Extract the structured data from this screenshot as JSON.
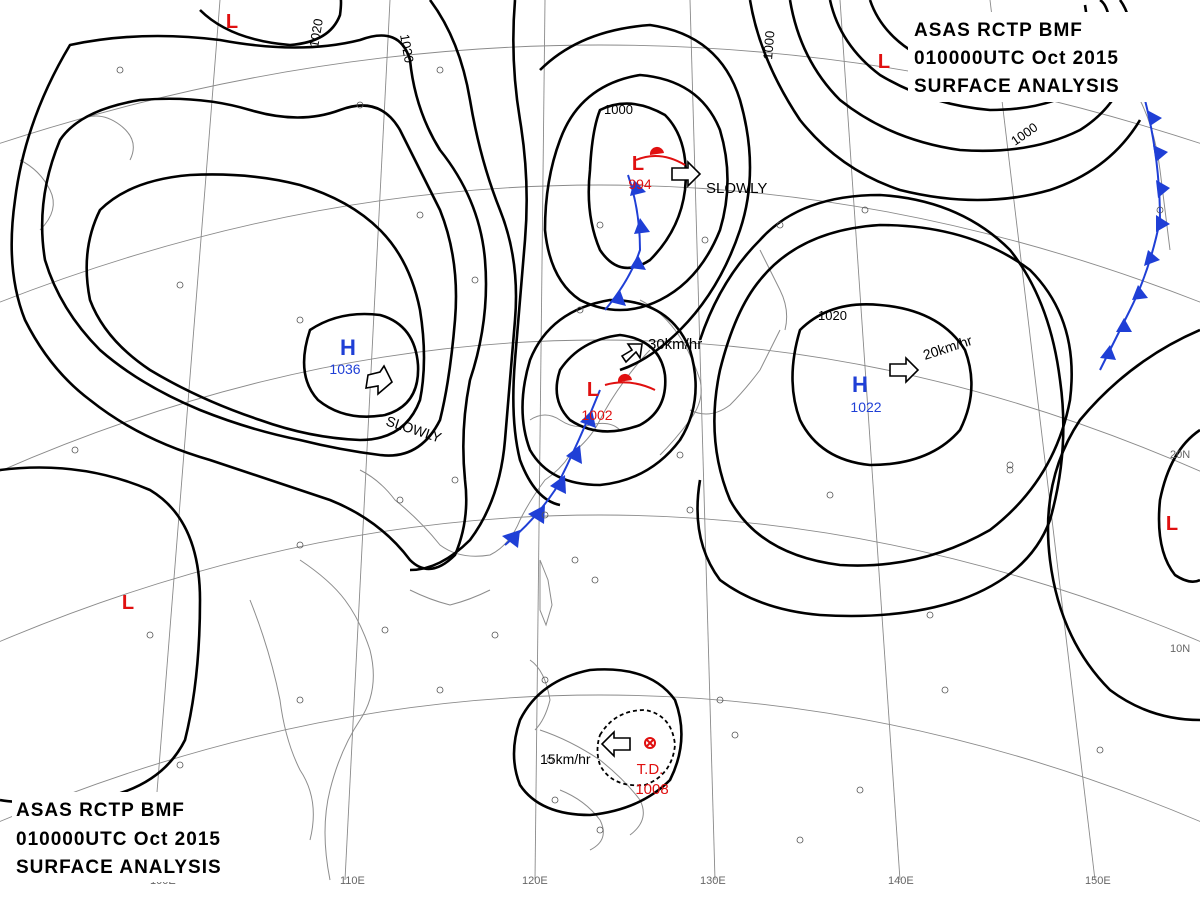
{
  "header_top": {
    "line1": "ASAS    RCTP    BMF",
    "line2": "010000UTC    Oct    2015",
    "line3": "SURFACE  ANALYSIS"
  },
  "header_bottom": {
    "line1": "ASAS    RCTP    BMF",
    "line2": "010000UTC    Oct    2015",
    "line3": "SURFACE  ANALYSIS"
  },
  "longitude_labels": [
    "100E",
    "110E",
    "120E",
    "130E",
    "140E",
    "150E"
  ],
  "latitude_labels": [
    "20N",
    "10N"
  ],
  "isobar_labels": [
    "1020",
    "1020",
    "1000",
    "1000",
    "1000",
    "1020"
  ],
  "pressure_systems": [
    {
      "type": "H",
      "value": "1036",
      "motion": "SLOWLY",
      "color": "#1f3fd6"
    },
    {
      "type": "H",
      "value": "1022",
      "motion": "20km/hr",
      "color": "#1f3fd6"
    },
    {
      "type": "L",
      "value": "994",
      "motion": "SLOWLY",
      "color": "#e01010"
    },
    {
      "type": "L",
      "value": "1002",
      "motion": "30km/hr",
      "color": "#e01010"
    },
    {
      "type": "L",
      "value": "",
      "motion": "",
      "color": "#e01010"
    },
    {
      "type": "L",
      "value": "",
      "motion": "",
      "color": "#e01010"
    },
    {
      "type": "L",
      "value": "",
      "motion": "",
      "color": "#e01010"
    },
    {
      "type": "L",
      "value": "",
      "motion": "",
      "color": "#e01010"
    }
  ],
  "tropical_depression": {
    "label": "T.D.",
    "value": "1008",
    "motion": "15km/hr",
    "color": "#e01010"
  },
  "colors": {
    "high": "#1f3fd6",
    "low": "#e01010",
    "cold_front": "#1f3fd6",
    "warm_front": "#e01010",
    "isobar": "#000000",
    "grid": "#777777",
    "coast": "#888888"
  }
}
